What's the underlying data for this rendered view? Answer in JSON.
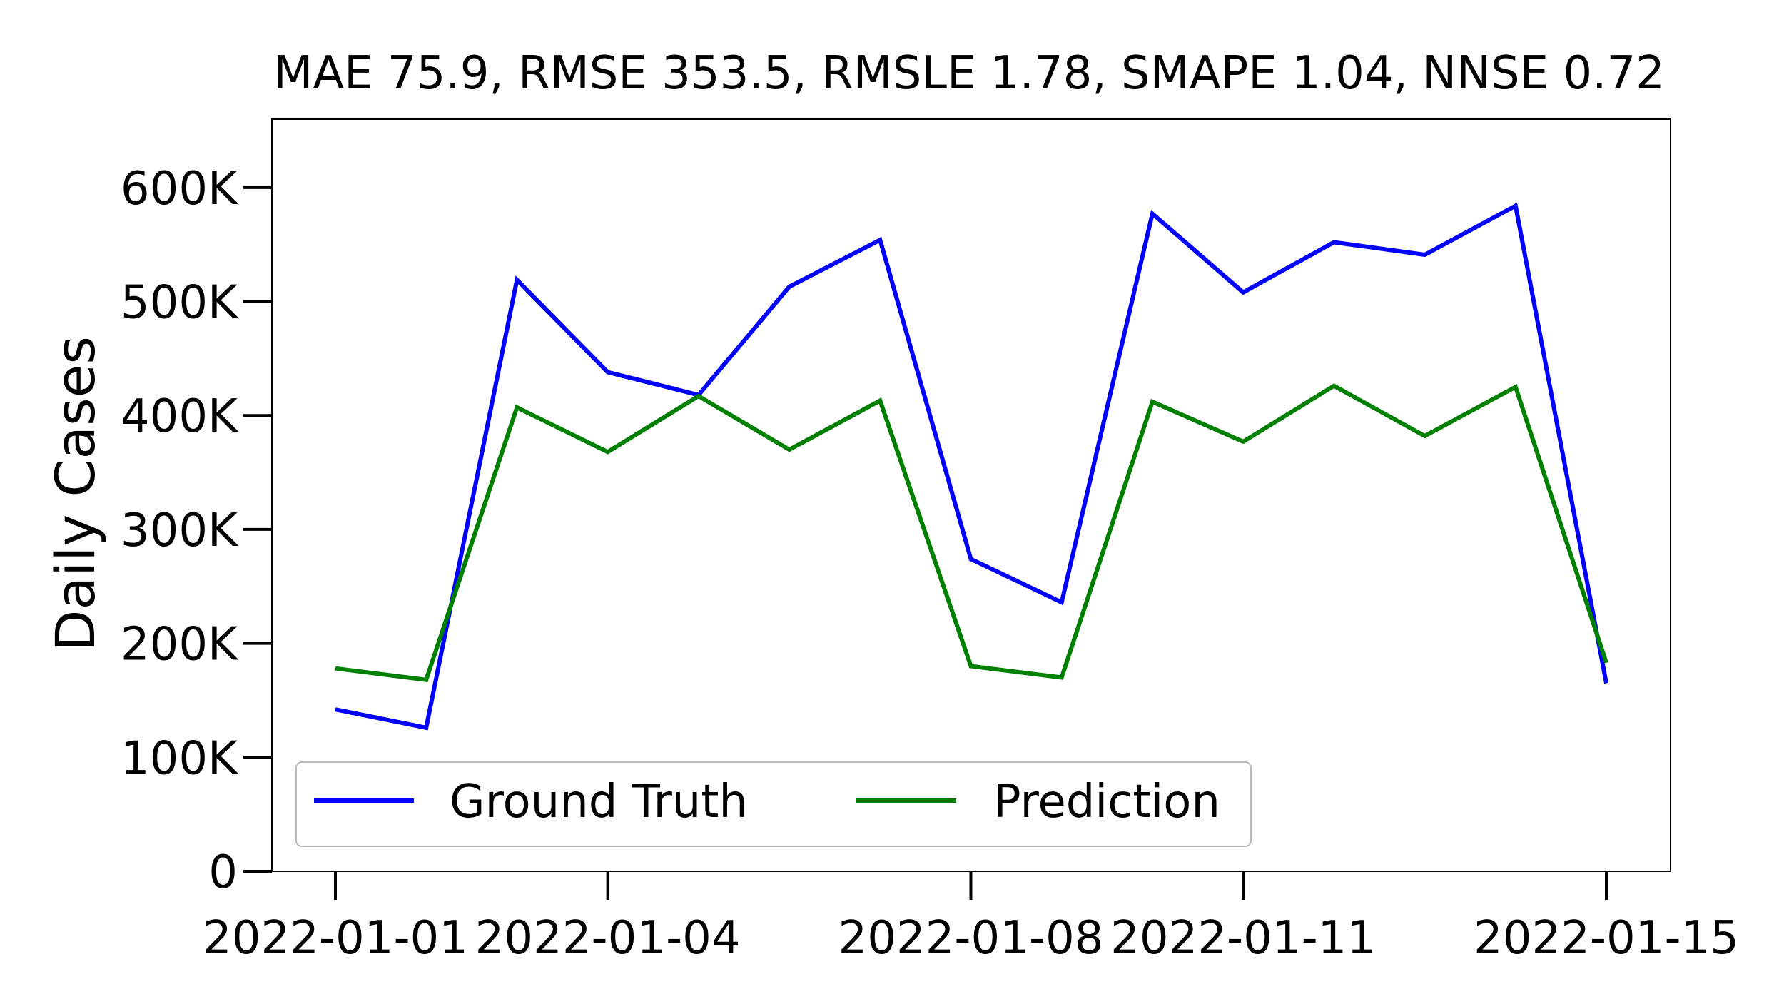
{
  "chart_data": {
    "type": "line",
    "title": "MAE 75.9, RMSE 353.5, RMSLE 1.78, SMAPE 1.04, NNSE 0.72",
    "xlabel": "",
    "ylabel": "Daily Cases",
    "x": [
      "2022-01-01",
      "2022-01-02",
      "2022-01-03",
      "2022-01-04",
      "2022-01-05",
      "2022-01-06",
      "2022-01-07",
      "2022-01-08",
      "2022-01-09",
      "2022-01-10",
      "2022-01-11",
      "2022-01-12",
      "2022-01-13",
      "2022-01-14",
      "2022-01-15"
    ],
    "xticks": [
      "2022-01-01",
      "2022-01-04",
      "2022-01-08",
      "2022-01-11",
      "2022-01-15"
    ],
    "yticks": [
      0,
      100000,
      200000,
      300000,
      400000,
      500000,
      600000
    ],
    "ytick_labels": [
      "0",
      "100K",
      "200K",
      "300K",
      "400K",
      "500K",
      "600K"
    ],
    "ylim": [
      0,
      660000
    ],
    "grid": false,
    "legend_position": "bottom-left",
    "series": [
      {
        "name": "Ground Truth",
        "color": "#0000ff",
        "values": [
          142000,
          126000,
          519000,
          438000,
          418000,
          513000,
          554000,
          274000,
          236000,
          577000,
          508000,
          552000,
          541000,
          584000,
          165000
        ]
      },
      {
        "name": "Prediction",
        "color": "#008000",
        "values": [
          178000,
          168000,
          407000,
          368000,
          417000,
          370000,
          413000,
          180000,
          170000,
          412000,
          377000,
          426000,
          382000,
          425000,
          183000
        ]
      }
    ]
  }
}
